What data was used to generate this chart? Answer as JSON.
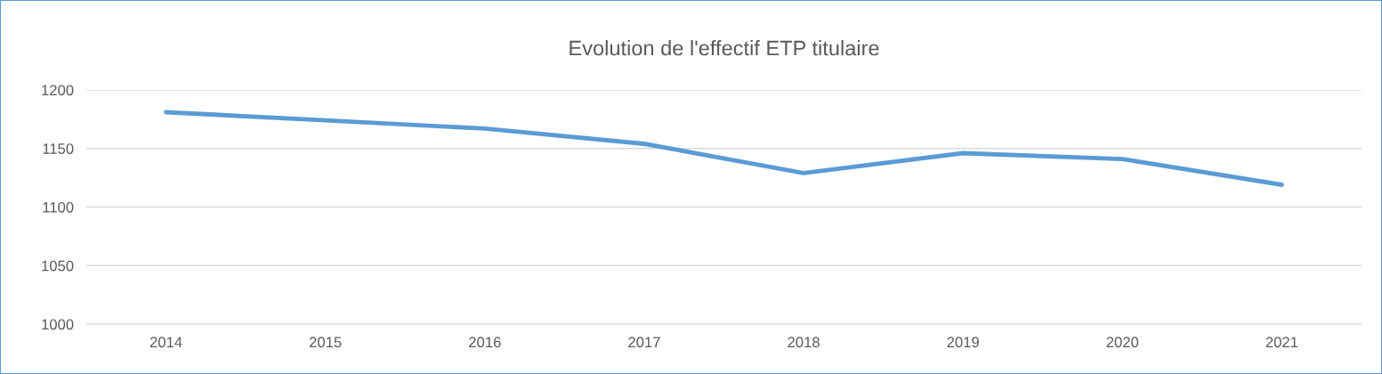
{
  "chart_data": {
    "type": "line",
    "title": "Evolution de l'effectif ETP titulaire",
    "categories": [
      "2014",
      "2015",
      "2016",
      "2017",
      "2018",
      "2019",
      "2020",
      "2021"
    ],
    "series": [
      {
        "color": "#5b9bd5",
        "values": [
          1181,
          1174,
          1167,
          1154,
          1129,
          1146,
          1141,
          1119
        ]
      }
    ],
    "ylim": [
      1000,
      1200
    ],
    "yticks": [
      1000,
      1050,
      1100,
      1150,
      1200
    ],
    "grid": "y",
    "marker": "none",
    "line_style": "solid",
    "legend": false
  }
}
